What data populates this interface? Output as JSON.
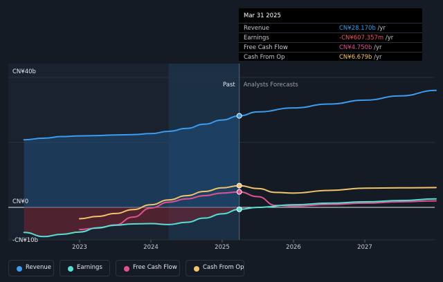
{
  "chart_data": {
    "type": "line",
    "title": "",
    "xlabel": "",
    "ylabel": "",
    "x_ticks": [
      "2023",
      "2024",
      "2025",
      "2026",
      "2027"
    ],
    "y_ticks": [
      "CN¥40b",
      "CN¥0",
      "-CN¥10b"
    ],
    "ylim": [
      -10,
      40
    ],
    "divider_labels": {
      "past": "Past",
      "forecast": "Analysts Forecasts"
    },
    "divider_date": 2025.24,
    "series": [
      {
        "name": "Revenue",
        "color": "#3b9cf0",
        "x": [
          2022.22,
          2022.5,
          2022.75,
          2023.0,
          2023.25,
          2023.5,
          2023.75,
          2024.0,
          2024.25,
          2024.5,
          2024.75,
          2025.0,
          2025.24,
          2025.5,
          2026.0,
          2026.5,
          2027.0,
          2027.5,
          2028.0
        ],
        "y": [
          20.8,
          21.3,
          21.8,
          22.0,
          22.1,
          22.3,
          22.4,
          22.7,
          23.4,
          24.3,
          25.6,
          26.9,
          28.17,
          29.4,
          30.6,
          31.8,
          33.0,
          34.3,
          36.0
        ]
      },
      {
        "name": "Earnings",
        "color": "#56e0d4",
        "x": [
          2022.22,
          2022.5,
          2022.75,
          2023.0,
          2023.25,
          2023.5,
          2023.75,
          2024.0,
          2024.25,
          2024.5,
          2024.75,
          2025.0,
          2025.24,
          2025.5,
          2026.0,
          2026.5,
          2027.0,
          2027.5,
          2028.0
        ],
        "y": [
          -7.7,
          -9.0,
          -8.3,
          -7.6,
          -6.3,
          -5.5,
          -5.1,
          -5.0,
          -5.3,
          -4.6,
          -3.3,
          -2.0,
          -0.61,
          0.0,
          0.8,
          1.3,
          1.7,
          2.1,
          2.6
        ]
      },
      {
        "name": "Free Cash Flow",
        "color": "#e0528f",
        "x": [
          2023.0,
          2023.25,
          2023.5,
          2023.75,
          2024.0,
          2024.25,
          2024.5,
          2024.75,
          2025.0,
          2025.24,
          2025.5,
          2025.75,
          2026.0,
          2026.5,
          2027.0,
          2027.5,
          2028.0
        ],
        "y": [
          -6.8,
          -6.4,
          -5.4,
          -3.0,
          -0.2,
          1.6,
          2.6,
          3.6,
          4.4,
          4.75,
          3.3,
          0.6,
          0.4,
          0.9,
          1.3,
          1.7,
          2.0
        ]
      },
      {
        "name": "Cash From Op",
        "color": "#f2c46b",
        "x": [
          2023.0,
          2023.25,
          2023.5,
          2023.75,
          2024.0,
          2024.25,
          2024.5,
          2024.75,
          2025.0,
          2025.24,
          2025.5,
          2025.75,
          2026.0,
          2026.5,
          2027.0,
          2027.5,
          2028.0
        ],
        "y": [
          -3.5,
          -2.8,
          -1.9,
          -0.7,
          0.8,
          2.3,
          3.6,
          4.9,
          6.0,
          6.68,
          5.8,
          4.6,
          4.4,
          5.2,
          5.9,
          6.0,
          6.1
        ]
      }
    ],
    "legend_position": "bottom-left",
    "grid": true
  },
  "tooltip": {
    "date": "Mar 31 2025",
    "rows": [
      {
        "label": "Revenue",
        "value": "CN¥28.170b",
        "unit": " /yr",
        "color": "#3b9cf0"
      },
      {
        "label": "Earnings",
        "value": "-CN¥607.357m",
        "unit": " /yr",
        "color": "#f2545b"
      },
      {
        "label": "Free Cash Flow",
        "value": "CN¥4.750b",
        "unit": " /yr",
        "color": "#e0528f"
      },
      {
        "label": "Cash From Op",
        "value": "CN¥6.679b",
        "unit": " /yr",
        "color": "#f2c46b"
      }
    ]
  },
  "legend": [
    {
      "label": "Revenue",
      "color": "#3b9cf0"
    },
    {
      "label": "Earnings",
      "color": "#56e0d4"
    },
    {
      "label": "Free Cash Flow",
      "color": "#e0528f"
    },
    {
      "label": "Cash From Op",
      "color": "#f2c46b"
    }
  ]
}
